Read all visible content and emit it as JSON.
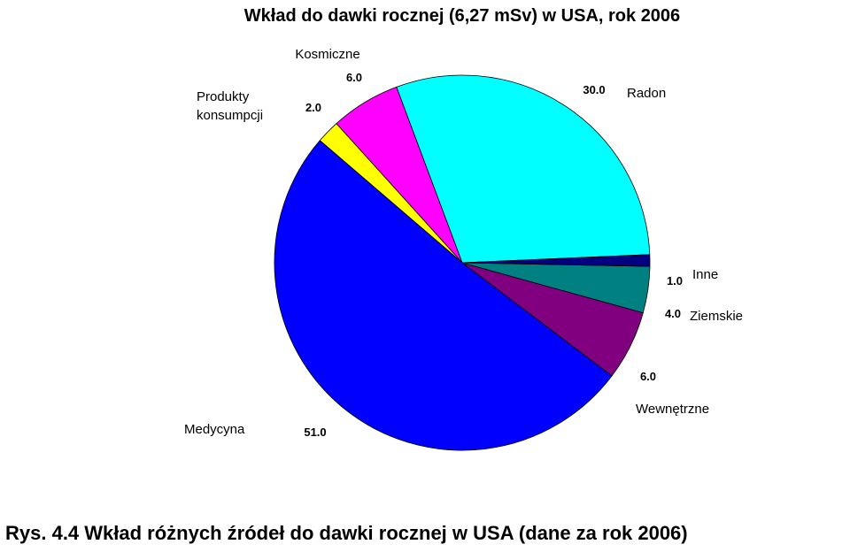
{
  "caption": "Rys. 4.4 Wkład różnych źródeł do dawki rocznej w USA (dane za rok 2006)",
  "chart_data": {
    "type": "pie",
    "title": "Wkład do dawki rocznej (6,27 mSv) w USA, rok 2006",
    "slices": [
      {
        "name": "Radon",
        "value": 30.0,
        "value_label": "30.0",
        "color": "#00FFFF"
      },
      {
        "name": "Kosmiczne",
        "value": 6.0,
        "value_label": "6.0",
        "color": "#FF00FF"
      },
      {
        "name_lines": [
          "Produkty",
          "konsumpcji"
        ],
        "value": 2.0,
        "value_label": "2.0",
        "color": "#FFFF00"
      },
      {
        "name": "Medycyna",
        "value": 51.0,
        "value_label": "51.0",
        "color": "#0000FF"
      },
      {
        "name": "Wewnętrzne",
        "value": 6.0,
        "value_label": "6.0",
        "color": "#800080"
      },
      {
        "name": "Ziemskie",
        "value": 4.0,
        "value_label": "4.0",
        "color": "#008080"
      },
      {
        "name": "Inne",
        "value": 1.0,
        "value_label": "1.0",
        "color": "#000080"
      }
    ]
  }
}
